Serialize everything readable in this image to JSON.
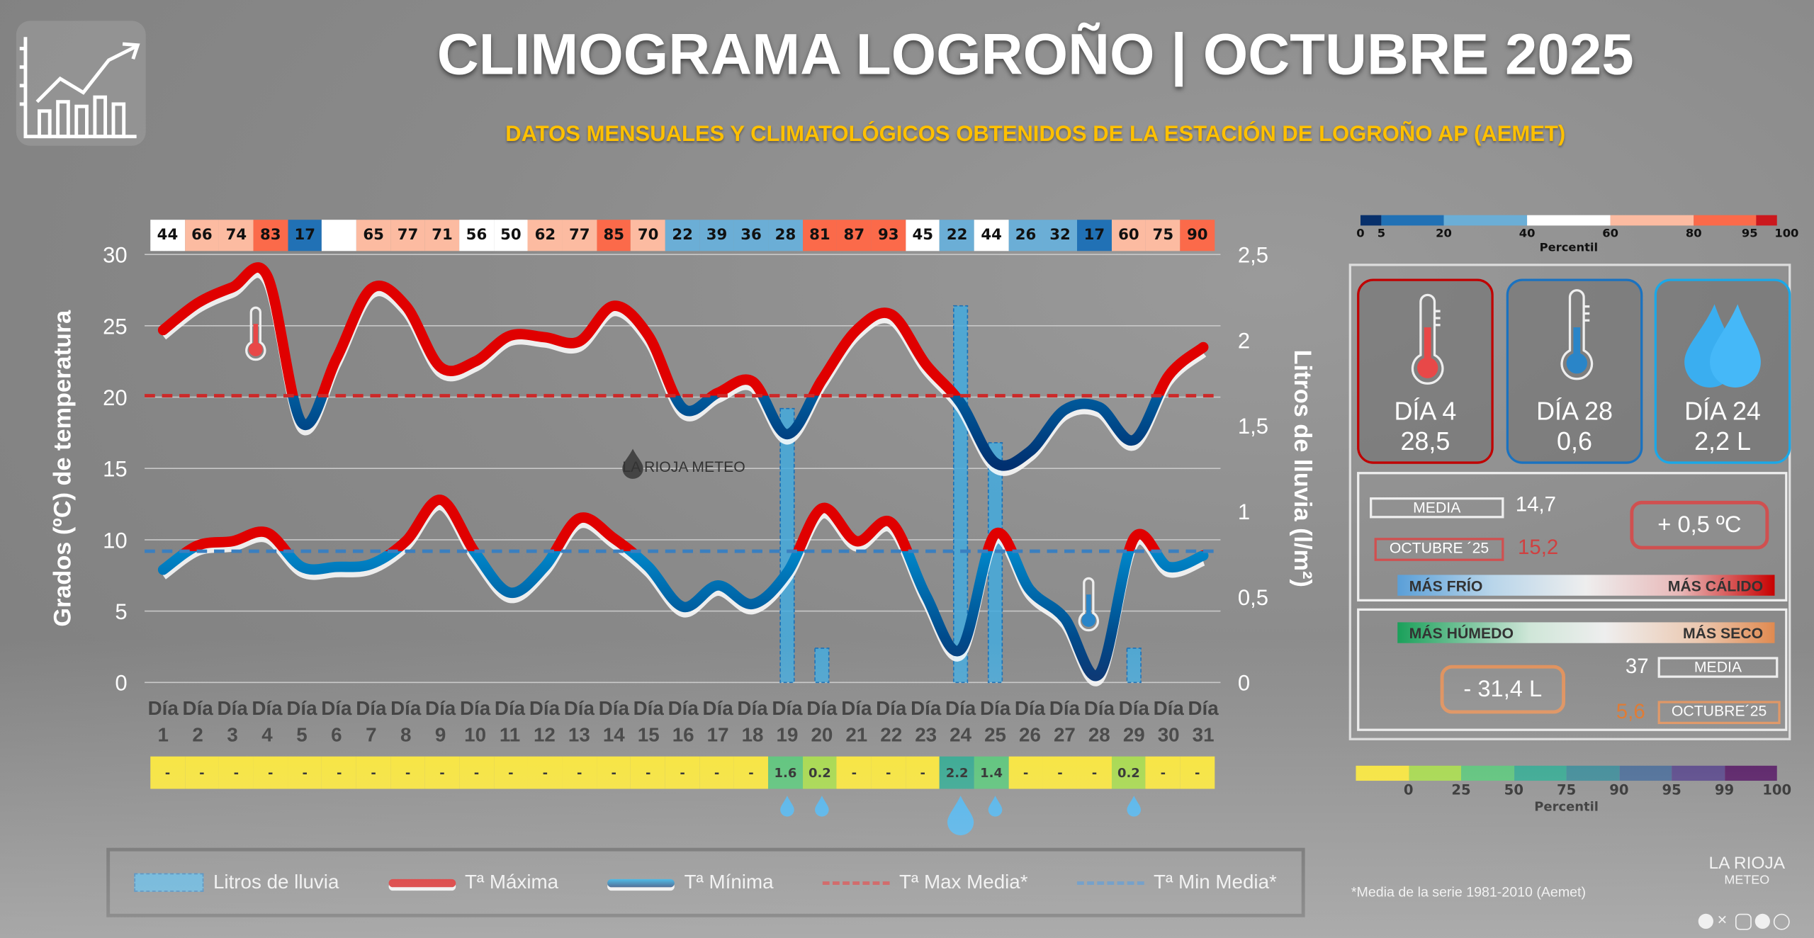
{
  "header": {
    "title": "CLIMOGRAMA LOGROÑO | OCTUBRE 2025",
    "subtitle": "DATOS MENSUALES Y CLIMATOLÓGICOS OBTENIDOS DE LA ESTACIÓN DE LOGROÑO AP (AEMET)"
  },
  "chart_data": {
    "type": "line",
    "x": [
      "1",
      "2",
      "3",
      "4",
      "5",
      "6",
      "7",
      "8",
      "9",
      "10",
      "11",
      "12",
      "13",
      "14",
      "15",
      "16",
      "17",
      "18",
      "19",
      "20",
      "21",
      "22",
      "23",
      "24",
      "25",
      "26",
      "27",
      "28",
      "29",
      "30",
      "31"
    ],
    "x_prefix": "Día",
    "ylabel": "Grados (ºC) de temperatura",
    "ylabel_right": "Litros de lluvia  (l/m²)",
    "ylim": [
      0,
      30
    ],
    "ylim_right": [
      0,
      2.5
    ],
    "yticks": [
      "0",
      "5",
      "10",
      "15",
      "20",
      "25",
      "30"
    ],
    "yticks_right": [
      "0",
      "0,5",
      "1",
      "1,5",
      "2",
      "2,5"
    ],
    "grid": true,
    "series": [
      {
        "name": "Tª Máxima",
        "type": "line",
        "values": [
          24.7,
          26.6,
          27.7,
          28.5,
          18.2,
          22.7,
          27.6,
          26.4,
          22.1,
          22.5,
          24.3,
          24.2,
          23.9,
          26.4,
          24.3,
          19.2,
          20.3,
          21.1,
          17.4,
          21.2,
          24.7,
          25.8,
          22.3,
          19.6,
          15.4,
          16.2,
          19.1,
          19.3,
          17.0,
          21.5,
          23.5
        ]
      },
      {
        "name": "Tª Mínima",
        "type": "line",
        "values": [
          7.9,
          9.6,
          9.9,
          10.5,
          8.1,
          8.1,
          8.3,
          9.9,
          12.8,
          9.1,
          6.3,
          8.1,
          11.5,
          10.1,
          8.1,
          5.3,
          6.8,
          5.5,
          7.7,
          12.2,
          9.9,
          11.2,
          6.1,
          2.3,
          10.4,
          6.5,
          4.5,
          0.6,
          10.1,
          8.1,
          8.9
        ]
      },
      {
        "name": "Litros de lluvia",
        "type": "bar",
        "axis": "right",
        "values": [
          0,
          0,
          0,
          0,
          0,
          0,
          0,
          0,
          0,
          0,
          0,
          0,
          0,
          0,
          0,
          0,
          0,
          0,
          1.6,
          0.2,
          0,
          0,
          0,
          2.2,
          1.4,
          0,
          0,
          0,
          0.2,
          0,
          0
        ]
      },
      {
        "name": "Tª Max Media*",
        "type": "hline",
        "value": 20.1
      },
      {
        "name": "Tª Min Media*",
        "type": "hline",
        "value": 9.2
      }
    ],
    "legend": [
      "Litros de lluvia",
      "Tª Máxima",
      "Tª Mínima",
      "Tª Max Media*",
      "Tª Min Media*"
    ],
    "legend_position": "bottom",
    "colors": {
      "max": "#e00000",
      "min_light": "#00aaee",
      "min_dark": "#003070",
      "bars": "#44aadd",
      "max_mean": "#cc2a2a",
      "min_mean": "#3a7fc0"
    },
    "temp_percentiles": [
      44,
      66,
      74,
      83,
      17,
      null,
      65,
      77,
      71,
      56,
      50,
      62,
      77,
      85,
      70,
      22,
      39,
      36,
      28,
      81,
      87,
      93,
      45,
      22,
      44,
      26,
      32,
      17,
      60,
      75,
      90
    ],
    "rain_cells": [
      {
        "label": "-",
        "color": "#fde725"
      },
      {
        "label": "-",
        "color": "#fde725"
      },
      {
        "label": "-",
        "color": "#fde725"
      },
      {
        "label": "-",
        "color": "#fde725"
      },
      {
        "label": "-",
        "color": "#fde725"
      },
      {
        "label": "-",
        "color": "#fde725"
      },
      {
        "label": "-",
        "color": "#fde725"
      },
      {
        "label": "-",
        "color": "#fde725"
      },
      {
        "label": "-",
        "color": "#fde725"
      },
      {
        "label": "-",
        "color": "#fde725"
      },
      {
        "label": "-",
        "color": "#fde725"
      },
      {
        "label": "-",
        "color": "#fde725"
      },
      {
        "label": "-",
        "color": "#fde725"
      },
      {
        "label": "-",
        "color": "#fde725"
      },
      {
        "label": "-",
        "color": "#fde725"
      },
      {
        "label": "-",
        "color": "#fde725"
      },
      {
        "label": "-",
        "color": "#fde725"
      },
      {
        "label": "-",
        "color": "#fde725"
      },
      {
        "label": "1.6",
        "color": "#4ac16d"
      },
      {
        "label": "0.2",
        "color": "#a0da39"
      },
      {
        "label": "-",
        "color": "#fde725"
      },
      {
        "label": "-",
        "color": "#fde725"
      },
      {
        "label": "-",
        "color": "#fde725"
      },
      {
        "label": "2.2",
        "color": "#1fa187"
      },
      {
        "label": "1.4",
        "color": "#4ac16d"
      },
      {
        "label": "-",
        "color": "#fde725"
      },
      {
        "label": "-",
        "color": "#fde725"
      },
      {
        "label": "-",
        "color": "#fde725"
      },
      {
        "label": "0.2",
        "color": "#a0da39"
      },
      {
        "label": "-",
        "color": "#fde725"
      },
      {
        "label": "-",
        "color": "#fde725"
      }
    ],
    "watermark": "LA RIOJA METEO"
  },
  "temp_colorbar": {
    "label": "Percentil",
    "ticks": [
      "0",
      "5",
      "20",
      "40",
      "60",
      "80",
      "95",
      "100"
    ],
    "bounds": [
      0,
      5,
      20,
      40,
      60,
      80,
      95,
      100
    ],
    "colors": [
      "#08306b",
      "#2171b5",
      "#6baed6",
      "#ffffff",
      "#fcbba1",
      "#fb6a4a",
      "#cb181d"
    ]
  },
  "rain_colorbar": {
    "label": "Percentil",
    "ticks": [
      "0",
      "25",
      "50",
      "75",
      "90",
      "95",
      "99",
      "100"
    ],
    "colors": [
      "#fde725",
      "#a0da39",
      "#4ac16d",
      "#1fa187",
      "#277f8e",
      "#365c8d",
      "#46327e",
      "#440154"
    ]
  },
  "cards": [
    {
      "line1": "DÍA 4",
      "line2": "28,5",
      "icon": "thermometer-hot",
      "color": "#c00000"
    },
    {
      "line1": "DÍA 28",
      "line2": "0,6",
      "icon": "thermometer-cold",
      "color": "#1a72c0"
    },
    {
      "line1": "DÍA 24",
      "line2": "2,2 L",
      "icon": "water-drops",
      "color": "#1aa8e8"
    }
  ],
  "temp_summary": {
    "media_label": "MEDIA",
    "media_value": "14,7",
    "month_label": "OCTUBRE ´25",
    "month_value": "15,2",
    "anomaly": "+ 0,5 ºC",
    "cold_label": "MÁS FRÍO",
    "warm_label": "MÁS CÁLIDO"
  },
  "rain_summary": {
    "wet_label": "MÁS HÚMEDO",
    "dry_label": "MÁS SECO",
    "anomaly": "- 31,4 L",
    "media_value": "37",
    "media_label": "MEDIA",
    "month_value": "5,6",
    "month_label": "OCTUBRE´25"
  },
  "footnote": "*Media de la serie 1981-2010 (Aemet)",
  "brand": {
    "name": "LA RIOJA",
    "sub": "METEO"
  }
}
